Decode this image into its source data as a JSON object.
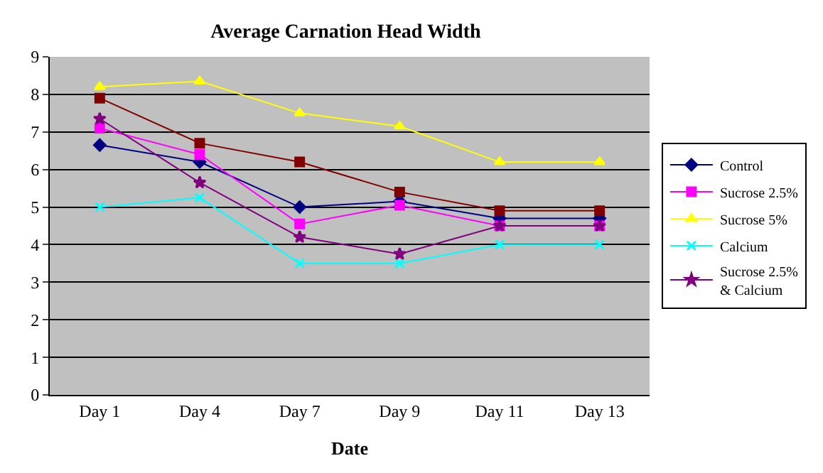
{
  "chart_data": {
    "type": "line",
    "title": "Average Carnation Head Width",
    "xlabel": "Date",
    "categories": [
      "Day 1",
      "Day 4",
      "Day 7",
      "Day 9",
      "Day 11",
      "Day 13"
    ],
    "ylim": [
      0,
      9
    ],
    "yticks": [
      0,
      1,
      2,
      3,
      4,
      5,
      6,
      7,
      8,
      9
    ],
    "grid": "y",
    "legend": "right",
    "line_style": "solid",
    "series": [
      {
        "name": "Control",
        "color": "#000080",
        "marker": "diamond",
        "values": [
          6.65,
          6.2,
          5.0,
          5.15,
          4.7,
          4.7
        ]
      },
      {
        "name": "Sucrose 2.5%",
        "color": "#ff00ff",
        "marker": "square",
        "values": [
          7.1,
          6.4,
          4.55,
          5.05,
          4.5,
          4.5
        ]
      },
      {
        "name": "Sucrose 5%",
        "color": "#ffff00",
        "marker": "triangle",
        "values": [
          8.2,
          8.35,
          7.5,
          7.15,
          6.2,
          6.2
        ]
      },
      {
        "name": "Calcium",
        "color": "#00ffff",
        "marker": "cross",
        "values": [
          5.0,
          5.25,
          3.5,
          3.5,
          4.0,
          4.0
        ]
      },
      {
        "name": "Sucrose 2.5%\n& Calcium",
        "color": "#800080",
        "marker": "star",
        "values": [
          7.35,
          5.65,
          4.2,
          3.75,
          4.5,
          4.5
        ]
      },
      {
        "color": "#800000",
        "marker": "square",
        "values": [
          7.9,
          6.7,
          6.2,
          5.4,
          4.9,
          4.9
        ]
      }
    ]
  }
}
